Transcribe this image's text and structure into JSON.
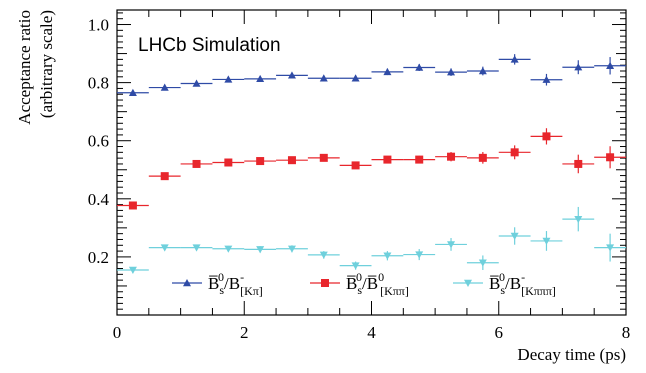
{
  "chart_data": {
    "type": "scatter",
    "annotation": "LHCb Simulation",
    "xlabel": "Decay time (ps)",
    "ylabel": [
      "Acceptance ratio",
      "(arbitrary scale)"
    ],
    "xlim": [
      0,
      8
    ],
    "ylim": [
      0,
      1.05
    ],
    "x_ticks": [
      0,
      2,
      4,
      6,
      8
    ],
    "y_ticks": [
      0.2,
      0.4,
      0.6,
      0.8,
      1.0
    ],
    "x_tick_labels": [
      "0",
      "2",
      "4",
      "6",
      "8"
    ],
    "y_tick_labels": [
      "0.2",
      "0.4",
      "0.6",
      "0.8",
      "1.0"
    ],
    "grid": false,
    "legend_position": "bottom",
    "series": [
      {
        "label": {
          "base": "B̅",
          "sup": "0",
          "sub1": "s",
          "mid": "/B",
          "sup2": "-",
          "sub2": "[Kπ]"
        },
        "color": "#2f4ba6",
        "marker": "triangle-up",
        "points": [
          {
            "x": 0.25,
            "xerr": 0.25,
            "y": 0.765,
            "yerr": 0.008
          },
          {
            "x": 0.75,
            "xerr": 0.25,
            "y": 0.783,
            "yerr": 0.008
          },
          {
            "x": 1.25,
            "xerr": 0.25,
            "y": 0.797,
            "yerr": 0.008
          },
          {
            "x": 1.75,
            "xerr": 0.25,
            "y": 0.811,
            "yerr": 0.008
          },
          {
            "x": 2.25,
            "xerr": 0.25,
            "y": 0.813,
            "yerr": 0.008
          },
          {
            "x": 2.75,
            "xerr": 0.25,
            "y": 0.825,
            "yerr": 0.009
          },
          {
            "x": 3.25,
            "xerr": 0.25,
            "y": 0.815,
            "yerr": 0.009
          },
          {
            "x": 3.75,
            "xerr": 0.25,
            "y": 0.815,
            "yerr": 0.01
          },
          {
            "x": 4.25,
            "xerr": 0.25,
            "y": 0.837,
            "yerr": 0.011
          },
          {
            "x": 4.75,
            "xerr": 0.25,
            "y": 0.852,
            "yerr": 0.012
          },
          {
            "x": 5.25,
            "xerr": 0.25,
            "y": 0.836,
            "yerr": 0.013
          },
          {
            "x": 5.75,
            "xerr": 0.25,
            "y": 0.84,
            "yerr": 0.015
          },
          {
            "x": 6.25,
            "xerr": 0.25,
            "y": 0.88,
            "yerr": 0.018
          },
          {
            "x": 6.75,
            "xerr": 0.25,
            "y": 0.81,
            "yerr": 0.02
          },
          {
            "x": 7.25,
            "xerr": 0.25,
            "y": 0.853,
            "yerr": 0.024
          },
          {
            "x": 7.75,
            "xerr": 0.25,
            "y": 0.858,
            "yerr": 0.03
          }
        ]
      },
      {
        "label": {
          "base": "B̅",
          "sup": "0",
          "sub1": "s",
          "mid": "/B̅",
          "sup2": "0",
          "sub2": "[Kππ]"
        },
        "color": "#e8262c",
        "marker": "square",
        "points": [
          {
            "x": 0.25,
            "xerr": 0.25,
            "y": 0.377,
            "yerr": 0.008
          },
          {
            "x": 0.75,
            "xerr": 0.25,
            "y": 0.478,
            "yerr": 0.008
          },
          {
            "x": 1.25,
            "xerr": 0.25,
            "y": 0.52,
            "yerr": 0.008
          },
          {
            "x": 1.75,
            "xerr": 0.25,
            "y": 0.525,
            "yerr": 0.008
          },
          {
            "x": 2.25,
            "xerr": 0.25,
            "y": 0.53,
            "yerr": 0.009
          },
          {
            "x": 2.75,
            "xerr": 0.25,
            "y": 0.533,
            "yerr": 0.009
          },
          {
            "x": 3.25,
            "xerr": 0.25,
            "y": 0.541,
            "yerr": 0.01
          },
          {
            "x": 3.75,
            "xerr": 0.25,
            "y": 0.515,
            "yerr": 0.011
          },
          {
            "x": 4.25,
            "xerr": 0.25,
            "y": 0.535,
            "yerr": 0.012
          },
          {
            "x": 4.75,
            "xerr": 0.25,
            "y": 0.535,
            "yerr": 0.013
          },
          {
            "x": 5.25,
            "xerr": 0.25,
            "y": 0.545,
            "yerr": 0.016
          },
          {
            "x": 5.75,
            "xerr": 0.25,
            "y": 0.541,
            "yerr": 0.02
          },
          {
            "x": 6.25,
            "xerr": 0.25,
            "y": 0.56,
            "yerr": 0.024
          },
          {
            "x": 6.75,
            "xerr": 0.25,
            "y": 0.615,
            "yerr": 0.028
          },
          {
            "x": 7.25,
            "xerr": 0.25,
            "y": 0.52,
            "yerr": 0.032
          },
          {
            "x": 7.75,
            "xerr": 0.25,
            "y": 0.543,
            "yerr": 0.038
          }
        ]
      },
      {
        "label": {
          "base": "B̅",
          "sup": "0",
          "sub1": "s",
          "mid": "/B",
          "sup2": "-",
          "sub2": "[Kπππ]"
        },
        "color": "#6fd0dc",
        "marker": "triangle-down",
        "points": [
          {
            "x": 0.25,
            "xerr": 0.25,
            "y": 0.155,
            "yerr": 0.01
          },
          {
            "x": 0.75,
            "xerr": 0.25,
            "y": 0.232,
            "yerr": 0.009
          },
          {
            "x": 1.25,
            "xerr": 0.25,
            "y": 0.232,
            "yerr": 0.009
          },
          {
            "x": 1.75,
            "xerr": 0.25,
            "y": 0.228,
            "yerr": 0.01
          },
          {
            "x": 2.25,
            "xerr": 0.25,
            "y": 0.226,
            "yerr": 0.011
          },
          {
            "x": 2.75,
            "xerr": 0.25,
            "y": 0.228,
            "yerr": 0.012
          },
          {
            "x": 3.25,
            "xerr": 0.25,
            "y": 0.207,
            "yerr": 0.013
          },
          {
            "x": 3.75,
            "xerr": 0.25,
            "y": 0.17,
            "yerr": 0.014
          },
          {
            "x": 4.25,
            "xerr": 0.25,
            "y": 0.204,
            "yerr": 0.016
          },
          {
            "x": 4.75,
            "xerr": 0.25,
            "y": 0.208,
            "yerr": 0.019
          },
          {
            "x": 5.25,
            "xerr": 0.25,
            "y": 0.243,
            "yerr": 0.022
          },
          {
            "x": 5.75,
            "xerr": 0.25,
            "y": 0.18,
            "yerr": 0.025
          },
          {
            "x": 6.25,
            "xerr": 0.25,
            "y": 0.272,
            "yerr": 0.03
          },
          {
            "x": 6.75,
            "xerr": 0.25,
            "y": 0.255,
            "yerr": 0.034
          },
          {
            "x": 7.25,
            "xerr": 0.25,
            "y": 0.33,
            "yerr": 0.042
          },
          {
            "x": 7.75,
            "xerr": 0.25,
            "y": 0.232,
            "yerr": 0.048
          }
        ]
      }
    ]
  }
}
